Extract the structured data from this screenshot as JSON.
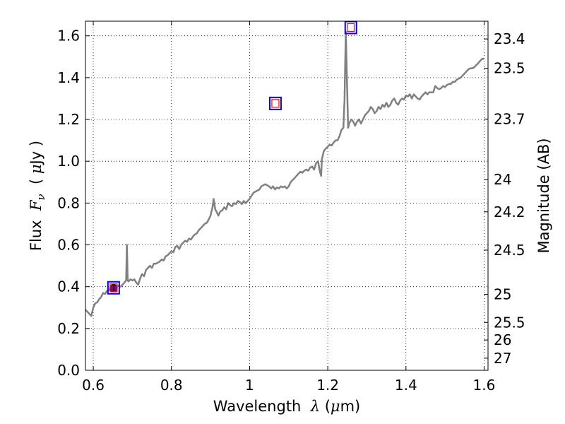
{
  "chart_data": {
    "type": "line",
    "xlabel": {
      "prefix": "Wavelength  ",
      "symbol": "λ",
      "units_open": " (",
      "units_mu": "μ",
      "units_rest": "m)"
    },
    "ylabel": {
      "prefix": "Flux  ",
      "symbol": "F",
      "subscript": "ν",
      "units_open": "  ( ",
      "units_mu": "μ",
      "units_rest": "Jy )"
    },
    "y2label": "Magnitude (AB)",
    "xlim": [
      0.58,
      1.61
    ],
    "ylim": [
      0.0,
      1.67
    ],
    "grid": true,
    "xticks": [
      {
        "value": 0.6,
        "label": "0.6"
      },
      {
        "value": 0.8,
        "label": "0.8"
      },
      {
        "value": 1.0,
        "label": "1"
      },
      {
        "value": 1.2,
        "label": "1.2"
      },
      {
        "value": 1.4,
        "label": "1.4"
      },
      {
        "value": 1.6,
        "label": "1.6"
      }
    ],
    "yticks": [
      {
        "value": 0.0,
        "label": "0.0"
      },
      {
        "value": 0.2,
        "label": "0.2"
      },
      {
        "value": 0.4,
        "label": "0.4"
      },
      {
        "value": 0.6,
        "label": "0.6"
      },
      {
        "value": 0.8,
        "label": "0.8"
      },
      {
        "value": 1.0,
        "label": "1.0"
      },
      {
        "value": 1.2,
        "label": "1.2"
      },
      {
        "value": 1.4,
        "label": "1.4"
      },
      {
        "value": 1.6,
        "label": "1.6"
      }
    ],
    "y2ticks": [
      {
        "label": "23.4",
        "flux": 1.585
      },
      {
        "label": "23.5",
        "flux": 1.445
      },
      {
        "label": "23.7",
        "flux": 1.202
      },
      {
        "label": "24",
        "flux": 0.912
      },
      {
        "label": "24.2",
        "flux": 0.758
      },
      {
        "label": "24.5",
        "flux": 0.575
      },
      {
        "label": "25",
        "flux": 0.363
      },
      {
        "label": "25.5",
        "flux": 0.229
      },
      {
        "label": "26",
        "flux": 0.145
      },
      {
        "label": "27",
        "flux": 0.058
      }
    ],
    "series": [
      {
        "color": "#808080",
        "points": [
          [
            0.58,
            0.29
          ],
          [
            0.59,
            0.27
          ],
          [
            0.595,
            0.26
          ],
          [
            0.6,
            0.3
          ],
          [
            0.605,
            0.32
          ],
          [
            0.61,
            0.325
          ],
          [
            0.615,
            0.34
          ],
          [
            0.62,
            0.35
          ],
          [
            0.625,
            0.37
          ],
          [
            0.63,
            0.365
          ],
          [
            0.635,
            0.38
          ],
          [
            0.64,
            0.385
          ],
          [
            0.645,
            0.39
          ],
          [
            0.65,
            0.395
          ],
          [
            0.655,
            0.395
          ],
          [
            0.66,
            0.4
          ],
          [
            0.665,
            0.405
          ],
          [
            0.67,
            0.4
          ],
          [
            0.675,
            0.41
          ],
          [
            0.68,
            0.42
          ],
          [
            0.684,
            0.43
          ],
          [
            0.686,
            0.6
          ],
          [
            0.688,
            0.43
          ],
          [
            0.69,
            0.425
          ],
          [
            0.695,
            0.435
          ],
          [
            0.7,
            0.43
          ],
          [
            0.705,
            0.435
          ],
          [
            0.71,
            0.42
          ],
          [
            0.715,
            0.41
          ],
          [
            0.72,
            0.44
          ],
          [
            0.725,
            0.46
          ],
          [
            0.73,
            0.45
          ],
          [
            0.735,
            0.48
          ],
          [
            0.74,
            0.49
          ],
          [
            0.745,
            0.5
          ],
          [
            0.75,
            0.49
          ],
          [
            0.755,
            0.51
          ],
          [
            0.76,
            0.51
          ],
          [
            0.765,
            0.515
          ],
          [
            0.77,
            0.52
          ],
          [
            0.775,
            0.53
          ],
          [
            0.78,
            0.525
          ],
          [
            0.785,
            0.545
          ],
          [
            0.79,
            0.55
          ],
          [
            0.795,
            0.56
          ],
          [
            0.8,
            0.57
          ],
          [
            0.805,
            0.565
          ],
          [
            0.81,
            0.59
          ],
          [
            0.815,
            0.595
          ],
          [
            0.82,
            0.58
          ],
          [
            0.825,
            0.6
          ],
          [
            0.83,
            0.61
          ],
          [
            0.835,
            0.62
          ],
          [
            0.84,
            0.615
          ],
          [
            0.845,
            0.63
          ],
          [
            0.85,
            0.625
          ],
          [
            0.855,
            0.64
          ],
          [
            0.86,
            0.65
          ],
          [
            0.865,
            0.655
          ],
          [
            0.87,
            0.67
          ],
          [
            0.875,
            0.68
          ],
          [
            0.88,
            0.69
          ],
          [
            0.885,
            0.7
          ],
          [
            0.89,
            0.705
          ],
          [
            0.895,
            0.72
          ],
          [
            0.9,
            0.74
          ],
          [
            0.905,
            0.78
          ],
          [
            0.908,
            0.82
          ],
          [
            0.912,
            0.77
          ],
          [
            0.915,
            0.76
          ],
          [
            0.92,
            0.74
          ],
          [
            0.925,
            0.76
          ],
          [
            0.93,
            0.765
          ],
          [
            0.935,
            0.78
          ],
          [
            0.94,
            0.77
          ],
          [
            0.945,
            0.8
          ],
          [
            0.95,
            0.79
          ],
          [
            0.955,
            0.785
          ],
          [
            0.96,
            0.8
          ],
          [
            0.965,
            0.795
          ],
          [
            0.97,
            0.81
          ],
          [
            0.975,
            0.805
          ],
          [
            0.98,
            0.795
          ],
          [
            0.985,
            0.81
          ],
          [
            0.99,
            0.8
          ],
          [
            0.995,
            0.81
          ],
          [
            1.0,
            0.82
          ],
          [
            1.005,
            0.835
          ],
          [
            1.01,
            0.85
          ],
          [
            1.015,
            0.855
          ],
          [
            1.02,
            0.86
          ],
          [
            1.025,
            0.865
          ],
          [
            1.03,
            0.88
          ],
          [
            1.035,
            0.885
          ],
          [
            1.04,
            0.89
          ],
          [
            1.045,
            0.885
          ],
          [
            1.05,
            0.88
          ],
          [
            1.055,
            0.87
          ],
          [
            1.06,
            0.88
          ],
          [
            1.065,
            0.865
          ],
          [
            1.07,
            0.875
          ],
          [
            1.075,
            0.87
          ],
          [
            1.08,
            0.88
          ],
          [
            1.085,
            0.875
          ],
          [
            1.09,
            0.88
          ],
          [
            1.095,
            0.87
          ],
          [
            1.1,
            0.88
          ],
          [
            1.105,
            0.9
          ],
          [
            1.11,
            0.91
          ],
          [
            1.115,
            0.92
          ],
          [
            1.12,
            0.93
          ],
          [
            1.125,
            0.94
          ],
          [
            1.13,
            0.95
          ],
          [
            1.135,
            0.945
          ],
          [
            1.14,
            0.955
          ],
          [
            1.145,
            0.96
          ],
          [
            1.15,
            0.955
          ],
          [
            1.155,
            0.97
          ],
          [
            1.16,
            0.975
          ],
          [
            1.165,
            0.96
          ],
          [
            1.17,
            0.99
          ],
          [
            1.175,
            1.0
          ],
          [
            1.18,
            0.95
          ],
          [
            1.183,
            0.93
          ],
          [
            1.185,
            1.01
          ],
          [
            1.19,
            1.05
          ],
          [
            1.195,
            1.06
          ],
          [
            1.2,
            1.07
          ],
          [
            1.205,
            1.08
          ],
          [
            1.21,
            1.075
          ],
          [
            1.215,
            1.09
          ],
          [
            1.22,
            1.1
          ],
          [
            1.225,
            1.1
          ],
          [
            1.23,
            1.12
          ],
          [
            1.235,
            1.15
          ],
          [
            1.24,
            1.16
          ],
          [
            1.243,
            1.3
          ],
          [
            1.246,
            1.62
          ],
          [
            1.249,
            1.4
          ],
          [
            1.252,
            1.16
          ],
          [
            1.255,
            1.18
          ],
          [
            1.26,
            1.2
          ],
          [
            1.265,
            1.19
          ],
          [
            1.27,
            1.17
          ],
          [
            1.275,
            1.19
          ],
          [
            1.28,
            1.2
          ],
          [
            1.285,
            1.18
          ],
          [
            1.29,
            1.2
          ],
          [
            1.295,
            1.22
          ],
          [
            1.3,
            1.23
          ],
          [
            1.305,
            1.24
          ],
          [
            1.31,
            1.26
          ],
          [
            1.315,
            1.25
          ],
          [
            1.32,
            1.23
          ],
          [
            1.325,
            1.24
          ],
          [
            1.33,
            1.26
          ],
          [
            1.335,
            1.25
          ],
          [
            1.34,
            1.27
          ],
          [
            1.345,
            1.26
          ],
          [
            1.35,
            1.28
          ],
          [
            1.355,
            1.26
          ],
          [
            1.36,
            1.27
          ],
          [
            1.365,
            1.29
          ],
          [
            1.37,
            1.3
          ],
          [
            1.375,
            1.28
          ],
          [
            1.38,
            1.27
          ],
          [
            1.385,
            1.29
          ],
          [
            1.39,
            1.3
          ],
          [
            1.395,
            1.295
          ],
          [
            1.4,
            1.315
          ],
          [
            1.405,
            1.31
          ],
          [
            1.41,
            1.32
          ],
          [
            1.415,
            1.3
          ],
          [
            1.42,
            1.32
          ],
          [
            1.425,
            1.31
          ],
          [
            1.43,
            1.3
          ],
          [
            1.435,
            1.295
          ],
          [
            1.44,
            1.31
          ],
          [
            1.445,
            1.32
          ],
          [
            1.45,
            1.33
          ],
          [
            1.455,
            1.32
          ],
          [
            1.46,
            1.33
          ],
          [
            1.465,
            1.33
          ],
          [
            1.47,
            1.33
          ],
          [
            1.475,
            1.36
          ],
          [
            1.48,
            1.35
          ],
          [
            1.485,
            1.345
          ],
          [
            1.49,
            1.35
          ],
          [
            1.495,
            1.36
          ],
          [
            1.5,
            1.355
          ],
          [
            1.505,
            1.365
          ],
          [
            1.51,
            1.37
          ],
          [
            1.515,
            1.37
          ],
          [
            1.52,
            1.38
          ],
          [
            1.525,
            1.38
          ],
          [
            1.53,
            1.39
          ],
          [
            1.535,
            1.395
          ],
          [
            1.54,
            1.4
          ],
          [
            1.545,
            1.41
          ],
          [
            1.55,
            1.42
          ],
          [
            1.555,
            1.43
          ],
          [
            1.56,
            1.44
          ],
          [
            1.565,
            1.445
          ],
          [
            1.57,
            1.445
          ],
          [
            1.575,
            1.45
          ],
          [
            1.58,
            1.46
          ],
          [
            1.585,
            1.47
          ],
          [
            1.59,
            1.48
          ],
          [
            1.595,
            1.49
          ],
          [
            1.6,
            1.49
          ]
        ]
      }
    ],
    "photometry_boxes": [
      {
        "x": 0.652,
        "y": 0.393,
        "outer_color": "#0000ff",
        "inner_color": "#ff0000"
      },
      {
        "x": 1.066,
        "y": 1.275,
        "outer_color": "#0000ff",
        "inner_color": "#ff0000"
      },
      {
        "x": 1.259,
        "y": 1.638,
        "outer_color": "#0000ff",
        "inner_color": "#ff0000"
      }
    ],
    "observed_point": {
      "x": 0.652,
      "y": 0.393,
      "err": 0.015,
      "color": "#800080"
    }
  }
}
